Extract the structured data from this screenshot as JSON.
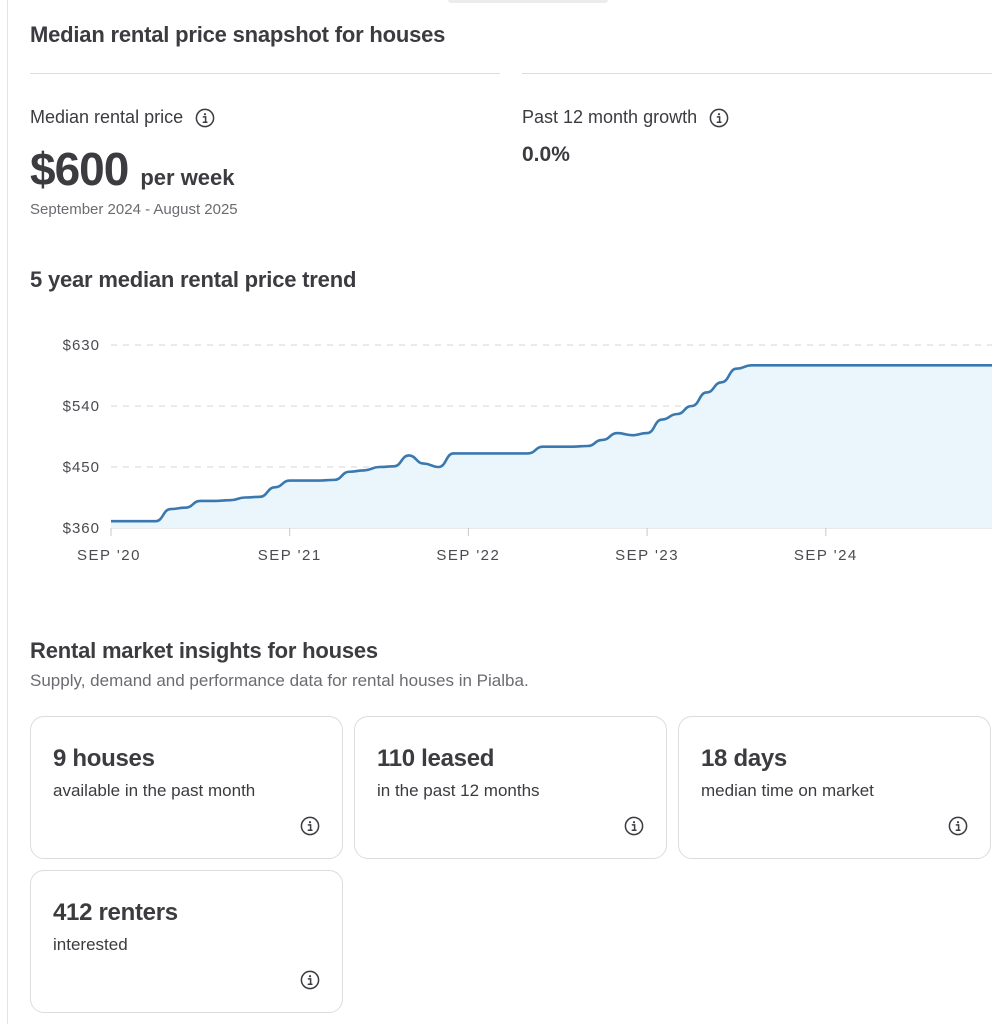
{
  "snapshot": {
    "title": "Median rental price snapshot for houses",
    "median_label": "Median rental price",
    "median_value": "$600",
    "median_unit": "per week",
    "period": "September 2024 - August 2025",
    "growth_label": "Past 12 month growth",
    "growth_value": "0.0%"
  },
  "trend": {
    "title": "5 year median rental price trend"
  },
  "chart_data": {
    "type": "area",
    "title": "5 year median rental price trend",
    "xlabel": "",
    "ylabel": "",
    "x_ticks": [
      "SEP '20",
      "SEP '21",
      "SEP '22",
      "SEP '23",
      "SEP '24"
    ],
    "y_ticks": [
      "$630",
      "$540",
      "$450",
      "$360"
    ],
    "y_tick_values": [
      630,
      540,
      450,
      360
    ],
    "ylim": [
      360,
      630
    ],
    "x_range": [
      "2020-09",
      "2025-08"
    ],
    "grid": true,
    "color": "#3a78b0",
    "fill": "#eaf6fb",
    "series": [
      {
        "values": [
          {
            "x": "2020-09",
            "y": 370
          },
          {
            "x": "2020-10",
            "y": 370
          },
          {
            "x": "2020-11",
            "y": 370
          },
          {
            "x": "2020-12",
            "y": 370
          },
          {
            "x": "2021-01",
            "y": 388
          },
          {
            "x": "2021-02",
            "y": 390
          },
          {
            "x": "2021-03",
            "y": 400
          },
          {
            "x": "2021-04",
            "y": 400
          },
          {
            "x": "2021-05",
            "y": 401
          },
          {
            "x": "2021-06",
            "y": 405
          },
          {
            "x": "2021-07",
            "y": 406
          },
          {
            "x": "2021-08",
            "y": 420
          },
          {
            "x": "2021-09",
            "y": 430
          },
          {
            "x": "2021-10",
            "y": 430
          },
          {
            "x": "2021-11",
            "y": 430
          },
          {
            "x": "2021-12",
            "y": 431
          },
          {
            "x": "2022-01",
            "y": 443
          },
          {
            "x": "2022-02",
            "y": 445
          },
          {
            "x": "2022-03",
            "y": 450
          },
          {
            "x": "2022-04",
            "y": 451
          },
          {
            "x": "2022-05",
            "y": 467
          },
          {
            "x": "2022-06",
            "y": 455
          },
          {
            "x": "2022-07",
            "y": 450
          },
          {
            "x": "2022-08",
            "y": 470
          },
          {
            "x": "2022-09",
            "y": 470
          },
          {
            "x": "2022-10",
            "y": 470
          },
          {
            "x": "2022-11",
            "y": 470
          },
          {
            "x": "2022-12",
            "y": 470
          },
          {
            "x": "2023-01",
            "y": 470
          },
          {
            "x": "2023-02",
            "y": 480
          },
          {
            "x": "2023-03",
            "y": 480
          },
          {
            "x": "2023-04",
            "y": 480
          },
          {
            "x": "2023-05",
            "y": 481
          },
          {
            "x": "2023-06",
            "y": 490
          },
          {
            "x": "2023-07",
            "y": 500
          },
          {
            "x": "2023-08",
            "y": 497
          },
          {
            "x": "2023-09",
            "y": 500
          },
          {
            "x": "2023-10",
            "y": 520
          },
          {
            "x": "2023-11",
            "y": 528
          },
          {
            "x": "2023-12",
            "y": 540
          },
          {
            "x": "2024-01",
            "y": 560
          },
          {
            "x": "2024-02",
            "y": 575
          },
          {
            "x": "2024-03",
            "y": 595
          },
          {
            "x": "2024-04",
            "y": 600
          },
          {
            "x": "2024-06",
            "y": 600
          },
          {
            "x": "2024-09",
            "y": 600
          },
          {
            "x": "2025-01",
            "y": 600
          },
          {
            "x": "2025-05",
            "y": 600
          },
          {
            "x": "2025-08",
            "y": 600
          }
        ]
      }
    ]
  },
  "insights": {
    "title": "Rental market insights for houses",
    "subtitle": "Supply, demand and performance data for rental houses in Pialba.",
    "cards": [
      {
        "value": "9 houses",
        "desc": "available in the past month"
      },
      {
        "value": "110 leased",
        "desc": "in the past 12 months"
      },
      {
        "value": "18 days",
        "desc": "median time on market"
      },
      {
        "value": "412 renters",
        "desc": "interested"
      }
    ]
  },
  "icons": {
    "info": "info-icon"
  }
}
